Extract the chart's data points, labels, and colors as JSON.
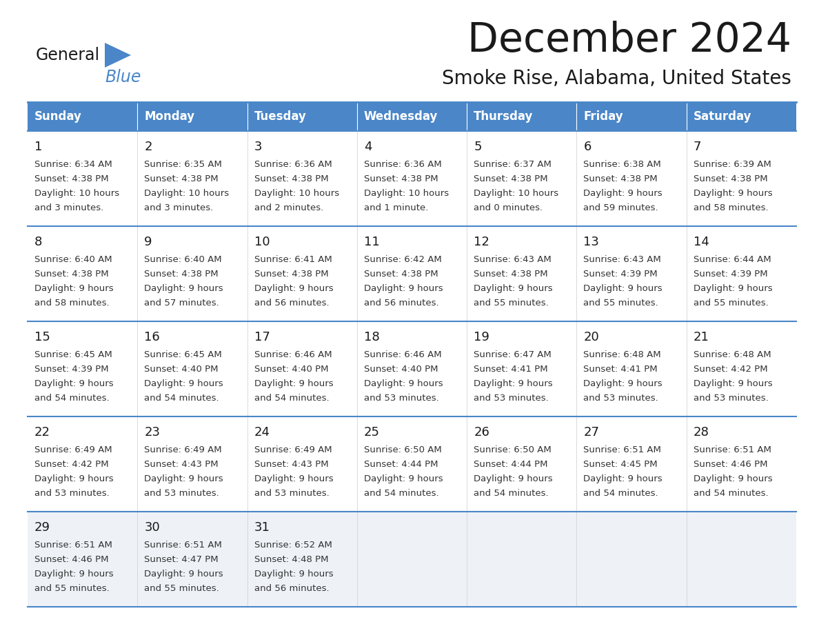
{
  "title": "December 2024",
  "subtitle": "Smoke Rise, Alabama, United States",
  "header_color": "#4a86c8",
  "header_text_color": "#ffffff",
  "row_bg_even": "#ffffff",
  "row_bg_odd": "#ffffff",
  "row_bg_last": "#eef2f7",
  "border_color": "#4a86c8",
  "text_color": "#333333",
  "days_of_week": [
    "Sunday",
    "Monday",
    "Tuesday",
    "Wednesday",
    "Thursday",
    "Friday",
    "Saturday"
  ],
  "logo_general_color": "#1a1a1a",
  "logo_blue_color": "#4a86c8",
  "logo_triangle_color": "#4a86c8",
  "calendar_data": [
    [
      {
        "day": 1,
        "sunrise": "6:34 AM",
        "sunset": "4:38 PM",
        "daylight": "10 hours",
        "daylight2": "and 3 minutes."
      },
      {
        "day": 2,
        "sunrise": "6:35 AM",
        "sunset": "4:38 PM",
        "daylight": "10 hours",
        "daylight2": "and 3 minutes."
      },
      {
        "day": 3,
        "sunrise": "6:36 AM",
        "sunset": "4:38 PM",
        "daylight": "10 hours",
        "daylight2": "and 2 minutes."
      },
      {
        "day": 4,
        "sunrise": "6:36 AM",
        "sunset": "4:38 PM",
        "daylight": "10 hours",
        "daylight2": "and 1 minute."
      },
      {
        "day": 5,
        "sunrise": "6:37 AM",
        "sunset": "4:38 PM",
        "daylight": "10 hours",
        "daylight2": "and 0 minutes."
      },
      {
        "day": 6,
        "sunrise": "6:38 AM",
        "sunset": "4:38 PM",
        "daylight": "9 hours",
        "daylight2": "and 59 minutes."
      },
      {
        "day": 7,
        "sunrise": "6:39 AM",
        "sunset": "4:38 PM",
        "daylight": "9 hours",
        "daylight2": "and 58 minutes."
      }
    ],
    [
      {
        "day": 8,
        "sunrise": "6:40 AM",
        "sunset": "4:38 PM",
        "daylight": "9 hours",
        "daylight2": "and 58 minutes."
      },
      {
        "day": 9,
        "sunrise": "6:40 AM",
        "sunset": "4:38 PM",
        "daylight": "9 hours",
        "daylight2": "and 57 minutes."
      },
      {
        "day": 10,
        "sunrise": "6:41 AM",
        "sunset": "4:38 PM",
        "daylight": "9 hours",
        "daylight2": "and 56 minutes."
      },
      {
        "day": 11,
        "sunrise": "6:42 AM",
        "sunset": "4:38 PM",
        "daylight": "9 hours",
        "daylight2": "and 56 minutes."
      },
      {
        "day": 12,
        "sunrise": "6:43 AM",
        "sunset": "4:38 PM",
        "daylight": "9 hours",
        "daylight2": "and 55 minutes."
      },
      {
        "day": 13,
        "sunrise": "6:43 AM",
        "sunset": "4:39 PM",
        "daylight": "9 hours",
        "daylight2": "and 55 minutes."
      },
      {
        "day": 14,
        "sunrise": "6:44 AM",
        "sunset": "4:39 PM",
        "daylight": "9 hours",
        "daylight2": "and 55 minutes."
      }
    ],
    [
      {
        "day": 15,
        "sunrise": "6:45 AM",
        "sunset": "4:39 PM",
        "daylight": "9 hours",
        "daylight2": "and 54 minutes."
      },
      {
        "day": 16,
        "sunrise": "6:45 AM",
        "sunset": "4:40 PM",
        "daylight": "9 hours",
        "daylight2": "and 54 minutes."
      },
      {
        "day": 17,
        "sunrise": "6:46 AM",
        "sunset": "4:40 PM",
        "daylight": "9 hours",
        "daylight2": "and 54 minutes."
      },
      {
        "day": 18,
        "sunrise": "6:46 AM",
        "sunset": "4:40 PM",
        "daylight": "9 hours",
        "daylight2": "and 53 minutes."
      },
      {
        "day": 19,
        "sunrise": "6:47 AM",
        "sunset": "4:41 PM",
        "daylight": "9 hours",
        "daylight2": "and 53 minutes."
      },
      {
        "day": 20,
        "sunrise": "6:48 AM",
        "sunset": "4:41 PM",
        "daylight": "9 hours",
        "daylight2": "and 53 minutes."
      },
      {
        "day": 21,
        "sunrise": "6:48 AM",
        "sunset": "4:42 PM",
        "daylight": "9 hours",
        "daylight2": "and 53 minutes."
      }
    ],
    [
      {
        "day": 22,
        "sunrise": "6:49 AM",
        "sunset": "4:42 PM",
        "daylight": "9 hours",
        "daylight2": "and 53 minutes."
      },
      {
        "day": 23,
        "sunrise": "6:49 AM",
        "sunset": "4:43 PM",
        "daylight": "9 hours",
        "daylight2": "and 53 minutes."
      },
      {
        "day": 24,
        "sunrise": "6:49 AM",
        "sunset": "4:43 PM",
        "daylight": "9 hours",
        "daylight2": "and 53 minutes."
      },
      {
        "day": 25,
        "sunrise": "6:50 AM",
        "sunset": "4:44 PM",
        "daylight": "9 hours",
        "daylight2": "and 54 minutes."
      },
      {
        "day": 26,
        "sunrise": "6:50 AM",
        "sunset": "4:44 PM",
        "daylight": "9 hours",
        "daylight2": "and 54 minutes."
      },
      {
        "day": 27,
        "sunrise": "6:51 AM",
        "sunset": "4:45 PM",
        "daylight": "9 hours",
        "daylight2": "and 54 minutes."
      },
      {
        "day": 28,
        "sunrise": "6:51 AM",
        "sunset": "4:46 PM",
        "daylight": "9 hours",
        "daylight2": "and 54 minutes."
      }
    ],
    [
      {
        "day": 29,
        "sunrise": "6:51 AM",
        "sunset": "4:46 PM",
        "daylight": "9 hours",
        "daylight2": "and 55 minutes."
      },
      {
        "day": 30,
        "sunrise": "6:51 AM",
        "sunset": "4:47 PM",
        "daylight": "9 hours",
        "daylight2": "and 55 minutes."
      },
      {
        "day": 31,
        "sunrise": "6:52 AM",
        "sunset": "4:48 PM",
        "daylight": "9 hours",
        "daylight2": "and 56 minutes."
      },
      null,
      null,
      null,
      null
    ]
  ]
}
